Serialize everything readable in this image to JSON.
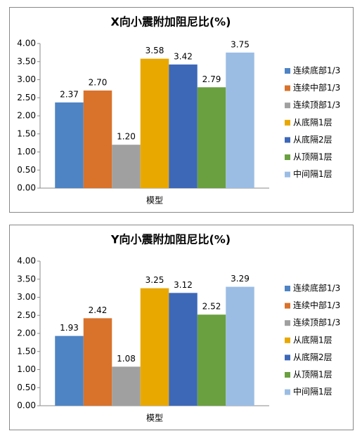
{
  "chart_data": [
    {
      "type": "bar",
      "title": "X向小震附加阻尼比(%)",
      "categories": [
        "模型"
      ],
      "series": [
        {
          "name": "连续底部1/3",
          "color": "#4e84c4",
          "values": [
            2.37
          ],
          "value_labels": [
            "2.37"
          ]
        },
        {
          "name": "连续中部1/3",
          "color": "#d9722b",
          "values": [
            2.7
          ],
          "value_labels": [
            "2.70"
          ]
        },
        {
          "name": "连续顶部1/3",
          "color": "#a0a0a0",
          "values": [
            1.2
          ],
          "value_labels": [
            "1.20"
          ]
        },
        {
          "name": "从底隔1层",
          "color": "#e8a800",
          "values": [
            3.58
          ],
          "value_labels": [
            "3.58"
          ]
        },
        {
          "name": "从底隔2层",
          "color": "#3d68b8",
          "values": [
            3.42
          ],
          "value_labels": [
            "3.42"
          ]
        },
        {
          "name": "从顶隔1层",
          "color": "#6aa040",
          "values": [
            2.79
          ],
          "value_labels": [
            "2.79"
          ]
        },
        {
          "name": "中间隔1层",
          "color": "#9bbde4",
          "values": [
            3.75
          ],
          "value_labels": [
            "3.75"
          ]
        }
      ],
      "ylim": [
        0,
        4
      ],
      "yticks": [
        {
          "value": 0,
          "label": "0.00"
        },
        {
          "value": 0.5,
          "label": "0.50"
        },
        {
          "value": 1,
          "label": "1.00"
        },
        {
          "value": 1.5,
          "label": "1.50"
        },
        {
          "value": 2,
          "label": "2.00"
        },
        {
          "value": 2.5,
          "label": "2.50"
        },
        {
          "value": 3,
          "label": "3.00"
        },
        {
          "value": 3.5,
          "label": "3.50"
        },
        {
          "value": 4,
          "label": "4.00"
        }
      ],
      "grid": false,
      "legend": "right"
    },
    {
      "type": "bar",
      "title": "Y向小震附加阻尼比(%)",
      "categories": [
        "模型"
      ],
      "series": [
        {
          "name": "连续底部1/3",
          "color": "#4e84c4",
          "values": [
            1.93
          ],
          "value_labels": [
            "1.93"
          ]
        },
        {
          "name": "连续中部1/3",
          "color": "#d9722b",
          "values": [
            2.42
          ],
          "value_labels": [
            "2.42"
          ]
        },
        {
          "name": "连续顶部1/3",
          "color": "#a0a0a0",
          "values": [
            1.08
          ],
          "value_labels": [
            "1.08"
          ]
        },
        {
          "name": "从底隔1层",
          "color": "#e8a800",
          "values": [
            3.25
          ],
          "value_labels": [
            "3.25"
          ]
        },
        {
          "name": "从底隔2层",
          "color": "#3d68b8",
          "values": [
            3.12
          ],
          "value_labels": [
            "3.12"
          ]
        },
        {
          "name": "从顶隔1层",
          "color": "#6aa040",
          "values": [
            2.52
          ],
          "value_labels": [
            "2.52"
          ]
        },
        {
          "name": "中间隔1层",
          "color": "#9bbde4",
          "values": [
            3.29
          ],
          "value_labels": [
            "3.29"
          ]
        }
      ],
      "ylim": [
        0,
        4
      ],
      "yticks": [
        {
          "value": 0,
          "label": "0.00"
        },
        {
          "value": 0.5,
          "label": "0.50"
        },
        {
          "value": 1,
          "label": "1.00"
        },
        {
          "value": 1.5,
          "label": "1.50"
        },
        {
          "value": 2,
          "label": "2.00"
        },
        {
          "value": 2.5,
          "label": "2.50"
        },
        {
          "value": 3,
          "label": "3.00"
        },
        {
          "value": 3.5,
          "label": "3.50"
        },
        {
          "value": 4,
          "label": "4.00"
        }
      ],
      "grid": false,
      "legend": "right"
    }
  ]
}
